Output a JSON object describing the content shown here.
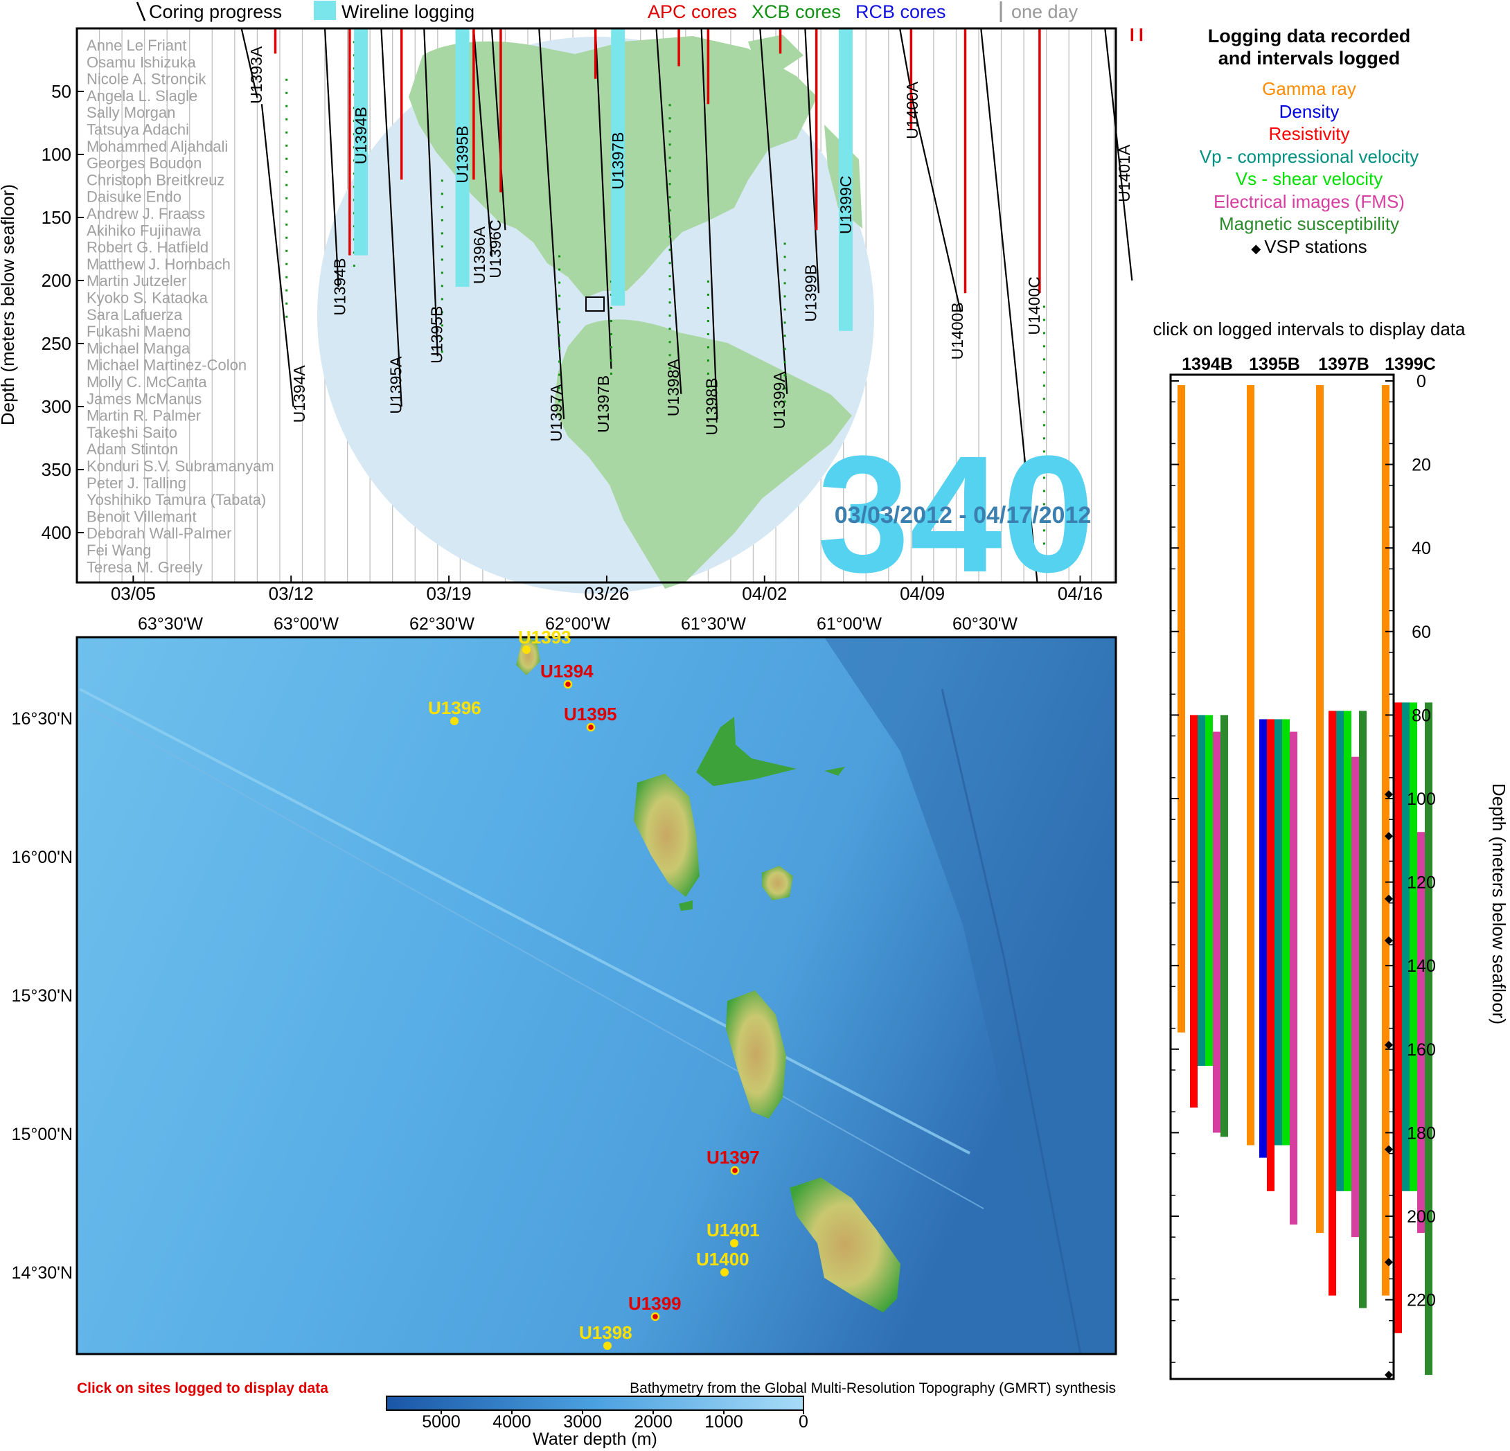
{
  "expedition": {
    "number": "340",
    "dates": "03/03/2012 - 04/17/2012"
  },
  "legend_top": {
    "coring": "Coring progress",
    "wireline": "Wireline logging",
    "apc": "APC cores",
    "xcb": "XCB cores",
    "rcb": "RCB cores",
    "oneday": "one day"
  },
  "colors": {
    "apc": "#e00000",
    "xcb": "#109010",
    "rcb": "#1010e0",
    "wireline": "#7ae6ec",
    "big_number": "#55d2f0",
    "dates": "#3a7fb0",
    "globe_ocean": "#d6e8f4",
    "globe_land": "#a9d7a3",
    "ring": "#3a3a3a"
  },
  "timeline": {
    "ylabel": "Depth (meters below seafloor)",
    "yticks": [
      "50",
      "100",
      "150",
      "200",
      "250",
      "300",
      "350",
      "400"
    ],
    "xticks": [
      "03/05",
      "03/12",
      "03/19",
      "03/26",
      "04/02",
      "04/09",
      "04/16"
    ],
    "scientists": [
      "Anne Le Friant",
      "Osamu Ishizuka",
      "Nicole A. Stroncik",
      "Angela L. Slagle",
      "Sally Morgan",
      "Tatsuya Adachi",
      "Mohammed Aljahdali",
      "Georges Boudon",
      "Christoph Breitkreuz",
      "Daisuke Endo",
      "Andrew J. Fraass",
      "Akihiko Fujinawa",
      "Robert G. Hatfield",
      "Matthew J. Hornbach",
      "Martin Jutzeler",
      "Kyoko S. Kataoka",
      "Sara Lafuerza",
      "Fukashi Maeno",
      "Michael Manga",
      "Michael Martinez-Colon",
      "Molly C. McCanta",
      "James McManus",
      "Martin R. Palmer",
      "Takeshi Saito",
      "Adam Stinton",
      "Konduri S.V. Subramanyam",
      "Peter J. Talling",
      "Yoshihiko Tamura (Tabata)",
      "Benoit Villemant",
      "Deborah Wall-Palmer",
      "Fei Wang",
      "Teresa M. Greely"
    ],
    "hole_labels": [
      {
        "label": "U1393A",
        "xd": 8.2,
        "d": 37
      },
      {
        "label": "U1394A",
        "xd": 10.1,
        "d": 290
      },
      {
        "label": "U1394B",
        "xd": 11.9,
        "d": 205
      },
      {
        "label": "U1395A",
        "xd": 14.4,
        "d": 283
      },
      {
        "label": "U1395B",
        "xd": 16.2,
        "d": 243
      },
      {
        "label": "U1396A",
        "xd": 18.1,
        "d": 180
      },
      {
        "label": "U1396C",
        "xd": 18.8,
        "d": 175
      },
      {
        "label": "U1397A",
        "xd": 21.5,
        "d": 305
      },
      {
        "label": "U1397B",
        "xd": 23.6,
        "d": 298
      },
      {
        "label": "U1398A",
        "xd": 26.7,
        "d": 285
      },
      {
        "label": "U1398B",
        "xd": 28.4,
        "d": 300
      },
      {
        "label": "U1399A",
        "xd": 31.4,
        "d": 295
      },
      {
        "label": "U1399B",
        "xd": 32.8,
        "d": 210
      },
      {
        "label": "U1400A",
        "xd": 37.3,
        "d": 65
      },
      {
        "label": "U1400B",
        "xd": 39.3,
        "d": 240
      },
      {
        "label": "U1400C",
        "xd": 42.7,
        "d": 220
      },
      {
        "label": "U1401A",
        "xd": 46.7,
        "d": 115
      }
    ],
    "wireline_labels": [
      {
        "label": "U1394B",
        "xd": 12.6,
        "d": 85
      },
      {
        "label": "U1395B",
        "xd": 17.1,
        "d": 100
      },
      {
        "label": "U1397B",
        "xd": 24.0,
        "d": 105
      },
      {
        "label": "U1399C",
        "xd": 34.1,
        "d": 140
      }
    ]
  },
  "map": {
    "lon_labels": [
      "63°30'W",
      "63°00'W",
      "62°30'W",
      "62°00'W",
      "61°30'W",
      "61°00'W",
      "60°30'W"
    ],
    "lat_labels": [
      "16°30'N",
      "16°00'N",
      "15°30'N",
      "15°00'N",
      "14°30'N"
    ],
    "sites": [
      {
        "name": "U1393",
        "logged": false
      },
      {
        "name": "U1394",
        "logged": true
      },
      {
        "name": "U1395",
        "logged": true
      },
      {
        "name": "U1396",
        "logged": false
      },
      {
        "name": "U1397",
        "logged": true
      },
      {
        "name": "U1401",
        "logged": false
      },
      {
        "name": "U1400",
        "logged": false
      },
      {
        "name": "U1399",
        "logged": true
      },
      {
        "name": "U1398",
        "logged": false
      }
    ],
    "click_hint": "Click on sites logged to display data",
    "credit": "Bathymetry from the Global Multi-Resolution Topography (GMRT) synthesis",
    "colorbar_ticks": [
      "5000",
      "4000",
      "3000",
      "2000",
      "1000",
      "0"
    ],
    "colorbar_label": "Water depth (m)"
  },
  "legend_right": {
    "title": "Logging data recorded and intervals logged",
    "items": [
      {
        "label": "Gamma ray",
        "color": "#ff8c00"
      },
      {
        "label": "Density",
        "color": "#0000e0"
      },
      {
        "label": "Resistivity",
        "color": "#ff0000"
      },
      {
        "label": "Vp - compressional velocity",
        "color": "#009080"
      },
      {
        "label": "Vs - shear velocity",
        "color": "#00e000"
      },
      {
        "label": "Electrical images (FMS)",
        "color": "#d63fa0"
      },
      {
        "label": "Magnetic susceptibility",
        "color": "#2c8a2c"
      },
      {
        "label": "VSP stations",
        "color": "#000000"
      }
    ],
    "click_hint": "click on logged intervals to display data"
  },
  "chart_data": {
    "type": "bar",
    "title": "",
    "ylabel": "Depth (meters below seafloor)",
    "ylim": [
      0,
      240
    ],
    "yticks": [
      "0",
      "20",
      "40",
      "60",
      "80",
      "100",
      "120",
      "140",
      "160",
      "180",
      "200",
      "220"
    ],
    "categories": [
      "1394B",
      "1395B",
      "1397B",
      "1399C"
    ],
    "series": [
      {
        "name": "Gamma ray",
        "color": "#ff8c00",
        "intervals": [
          [
            1,
            156
          ],
          [
            1,
            183
          ],
          [
            1,
            204
          ],
          [
            1,
            219
          ]
        ]
      },
      {
        "name": "Density",
        "color": "#0000e0",
        "intervals": [
          null,
          [
            81,
            186
          ],
          null,
          null
        ]
      },
      {
        "name": "Resistivity",
        "color": "#ff0000",
        "intervals": [
          [
            80,
            174
          ],
          [
            81,
            194
          ],
          [
            79,
            219
          ],
          [
            77,
            228
          ]
        ]
      },
      {
        "name": "Vp - compressional velocity",
        "color": "#009080",
        "intervals": [
          [
            80,
            164
          ],
          [
            81,
            183
          ],
          [
            79,
            194
          ],
          [
            77,
            194
          ]
        ]
      },
      {
        "name": "Vs - shear velocity",
        "color": "#00e000",
        "intervals": [
          [
            80,
            164
          ],
          [
            81,
            183
          ],
          [
            79,
            194
          ],
          [
            77,
            194
          ]
        ]
      },
      {
        "name": "Electrical images (FMS)",
        "color": "#d63fa0",
        "intervals": [
          [
            84,
            180
          ],
          [
            84,
            202
          ],
          [
            90,
            205
          ],
          [
            108,
            204
          ]
        ]
      },
      {
        "name": "Magnetic susceptibility",
        "color": "#2c8a2c",
        "intervals": [
          [
            80,
            181
          ],
          null,
          [
            79,
            222
          ],
          [
            77,
            238
          ]
        ]
      }
    ],
    "vsp_stations": [
      99,
      109,
      124,
      134,
      159,
      184,
      211,
      238
    ]
  }
}
